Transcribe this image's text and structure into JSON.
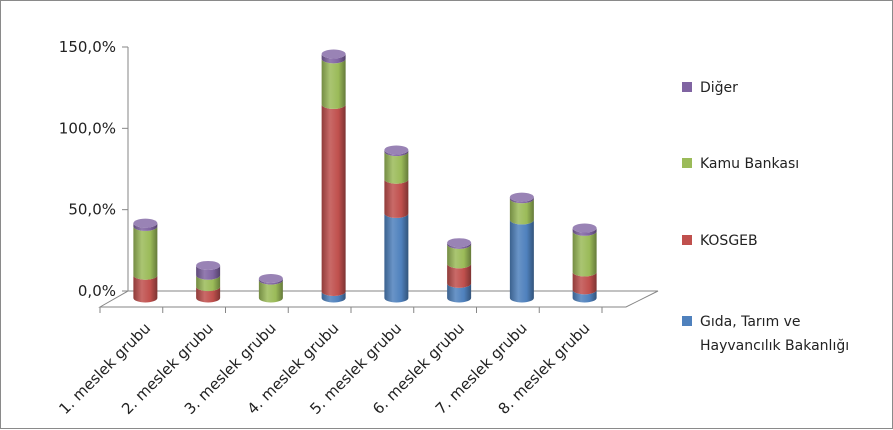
{
  "chart_data": {
    "type": "bar",
    "stacked": true,
    "three_d": true,
    "categories": [
      "1. meslek grubu",
      "2. meslek grubu",
      "3. meslek grubu",
      "4. meslek grubu",
      "5. meslek grubu",
      "6. meslek grubu",
      "7. meslek grubu",
      "8. meslek grubu"
    ],
    "series": [
      {
        "name": "Gıda, Tarım ve Hayvancılık Bakanlığı",
        "color": "#4F81BD",
        "values": [
          0,
          0,
          0,
          4,
          52,
          9,
          48,
          5
        ]
      },
      {
        "name": "KOSGEB",
        "color": "#C0504D",
        "values": [
          14,
          7,
          0,
          115,
          21,
          12,
          0,
          11
        ]
      },
      {
        "name": "Kamu Bankası",
        "color": "#9BBB59",
        "values": [
          30,
          7,
          11,
          28,
          17,
          12,
          13,
          25
        ]
      },
      {
        "name": "Diğer",
        "color": "#8064A2",
        "values": [
          2,
          6,
          1,
          3,
          1,
          1,
          1,
          2
        ]
      }
    ],
    "yticks": [
      "0,0%",
      "50,0%",
      "100,0%",
      "150,0%"
    ],
    "ylim": [
      0,
      150
    ],
    "legend_position": "right",
    "grid": false
  }
}
